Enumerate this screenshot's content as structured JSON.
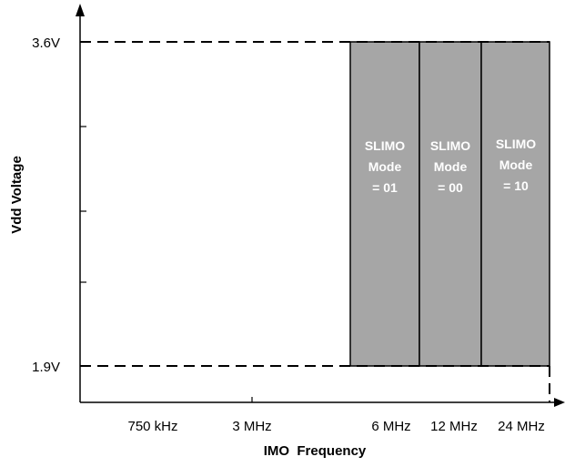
{
  "diagram": {
    "x_axis_title": "IMO  Frequency",
    "y_axis_title": "Vdd Voltage",
    "y_tick_labels": {
      "top": "3.6V",
      "bottom": "1.9V"
    },
    "x_tick_labels": [
      "750 kHz",
      "3 MHz",
      "6 MHz",
      "12 MHz",
      "24 MHz"
    ],
    "regions": [
      {
        "lines": [
          "SLIMO",
          "Mode",
          "= 01"
        ],
        "fill": "#a6a6a6"
      },
      {
        "lines": [
          "SLIMO",
          "Mode",
          "= 00"
        ],
        "fill": "#a6a6a6"
      },
      {
        "lines": [
          "SLIMO",
          "Mode",
          "= 10"
        ],
        "fill": "#a6a6a6"
      }
    ],
    "colors": {
      "axis": "#000000",
      "region_fill": "#a6a6a6",
      "region_text": "#ffffff"
    }
  }
}
